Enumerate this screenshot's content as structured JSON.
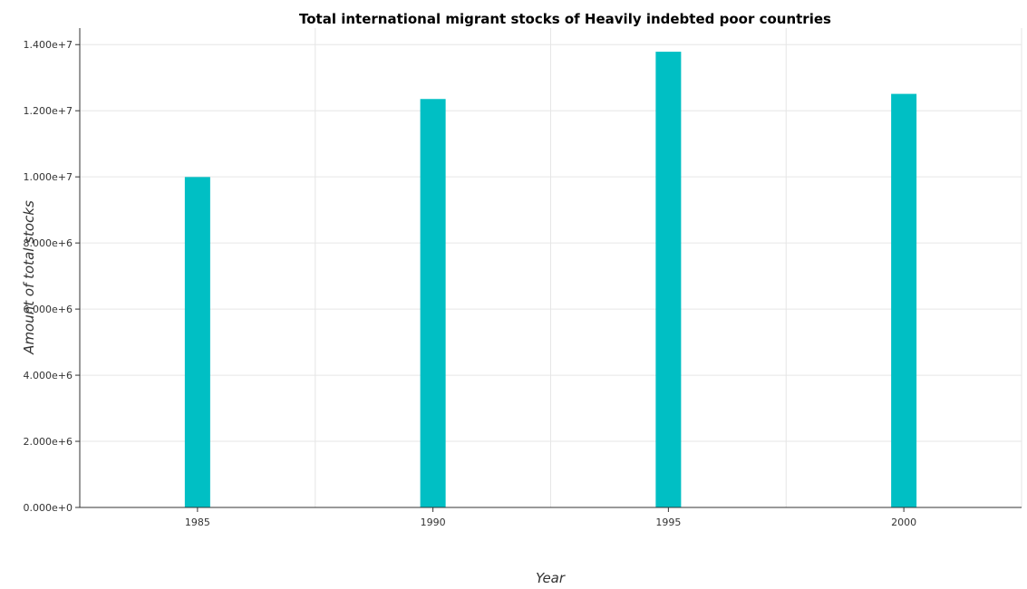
{
  "chart_data": {
    "type": "bar",
    "title": "Total international migrant stocks of Heavily indebted poor countries",
    "xlabel": "Year",
    "ylabel": "Amount of total stocks",
    "categories": [
      "1985",
      "1990",
      "1995",
      "2000"
    ],
    "values": [
      9995000,
      12355000,
      13785000,
      12510000
    ],
    "ylim": [
      0,
      14500000
    ],
    "yticks": [
      0,
      2000000,
      4000000,
      6000000,
      8000000,
      10000000,
      12000000,
      14000000
    ],
    "ytick_labels": [
      "0.000e+0",
      "2.000e+6",
      "4.000e+6",
      "6.000e+6",
      "8.000e+6",
      "1.000e+7",
      "1.200e+7",
      "1.400e+7"
    ],
    "bar_color": "#00bfc4",
    "grid": true,
    "legend": "none"
  }
}
